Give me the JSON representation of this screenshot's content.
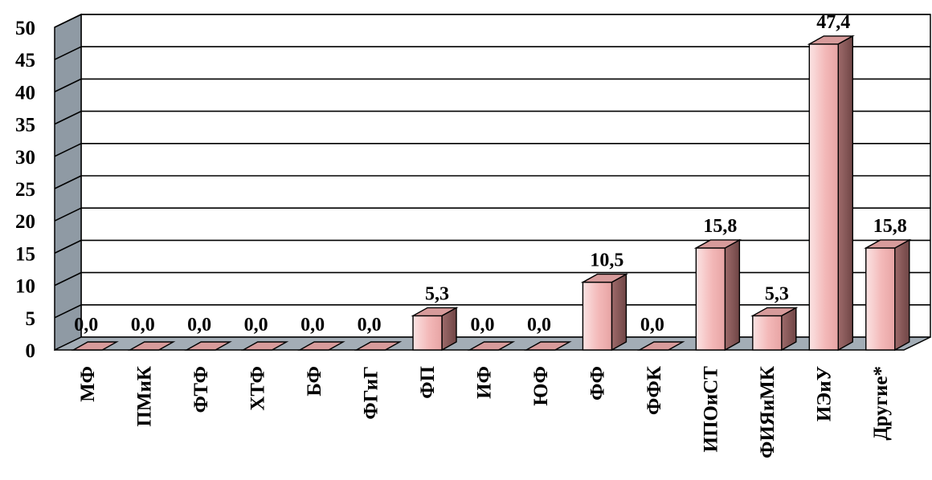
{
  "chart_data": {
    "type": "bar",
    "title": "",
    "xlabel": "",
    "ylabel": "",
    "categories": [
      "МФ",
      "ПМиК",
      "ФТФ",
      "ХТФ",
      "БФ",
      "ФГиГ",
      "ФП",
      "ИФ",
      "ЮФ",
      "ФФ",
      "ФФК",
      "ИПОиСТ",
      "ФИЯиМК",
      "ИЭиУ",
      "Другие*"
    ],
    "values": [
      0.0,
      0.0,
      0.0,
      0.0,
      0.0,
      0.0,
      5.3,
      0.0,
      0.0,
      10.5,
      0.0,
      15.8,
      5.3,
      47.4,
      15.8
    ],
    "data_labels": [
      "0,0",
      "0,0",
      "0,0",
      "0,0",
      "0,0",
      "0,0",
      "5,3",
      "0,0",
      "0,0",
      "10,5",
      "0,0",
      "15,8",
      "5,3",
      "47,4",
      "15,8"
    ],
    "ylim": [
      0,
      50
    ],
    "yticks": [
      "0",
      "5",
      "10",
      "15",
      "20",
      "25",
      "30",
      "35",
      "40",
      "45",
      "50"
    ],
    "grid": true,
    "legend": "none",
    "style": "3d-column",
    "colors": {
      "bar_front": "#f3b8b8",
      "bar_side": "#8e5e5e",
      "bar_top": "#d79b9b",
      "wall": "#ffffff",
      "side_wall": "#8f9aa4",
      "floor": "#a3adb6",
      "grid": "#000000"
    }
  }
}
